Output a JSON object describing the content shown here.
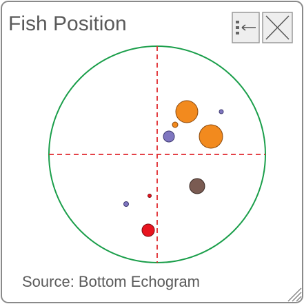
{
  "panel": {
    "title": "Fish Position",
    "source": "Source: Bottom Echogram"
  }
}
